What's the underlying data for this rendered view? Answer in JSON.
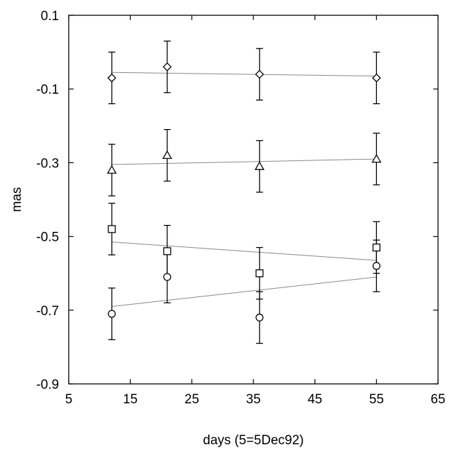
{
  "chart_data": {
    "type": "scatter",
    "title": "",
    "xlabel": "days  (5=5Dec92)",
    "ylabel": "mas",
    "xlim": [
      5,
      65
    ],
    "ylim": [
      -0.9,
      0.1
    ],
    "xticks": [
      "5",
      "15",
      "25",
      "35",
      "45",
      "55",
      "65"
    ],
    "yticks": [
      "0.1",
      "-0.1",
      "-0.3",
      "-0.5",
      "-0.7",
      "-0.9"
    ],
    "grid": false,
    "legend": "none",
    "series": [
      {
        "marker": "diamond",
        "x": [
          12,
          21,
          36,
          55
        ],
        "y": [
          -0.07,
          -0.04,
          -0.06,
          -0.07
        ],
        "err": [
          0.07,
          0.07,
          0.07,
          0.07
        ],
        "fit": [
          [
            12,
            -0.055
          ],
          [
            55,
            -0.065
          ]
        ]
      },
      {
        "marker": "triangle",
        "x": [
          12,
          21,
          36,
          55
        ],
        "y": [
          -0.32,
          -0.28,
          -0.31,
          -0.29
        ],
        "err": [
          0.07,
          0.07,
          0.07,
          0.07
        ],
        "fit": [
          [
            12,
            -0.305
          ],
          [
            55,
            -0.29
          ]
        ]
      },
      {
        "marker": "square",
        "x": [
          12,
          21,
          36,
          55
        ],
        "y": [
          -0.48,
          -0.54,
          -0.6,
          -0.53
        ],
        "err": [
          0.07,
          0.07,
          0.07,
          0.07
        ],
        "fit": [
          [
            12,
            -0.515
          ],
          [
            55,
            -0.565
          ]
        ]
      },
      {
        "marker": "circle",
        "x": [
          12,
          21,
          36,
          55
        ],
        "y": [
          -0.71,
          -0.61,
          -0.72,
          -0.58
        ],
        "err": [
          0.07,
          0.07,
          0.07,
          0.07
        ],
        "fit": [
          [
            12,
            -0.69
          ],
          [
            55,
            -0.61
          ]
        ]
      }
    ]
  }
}
